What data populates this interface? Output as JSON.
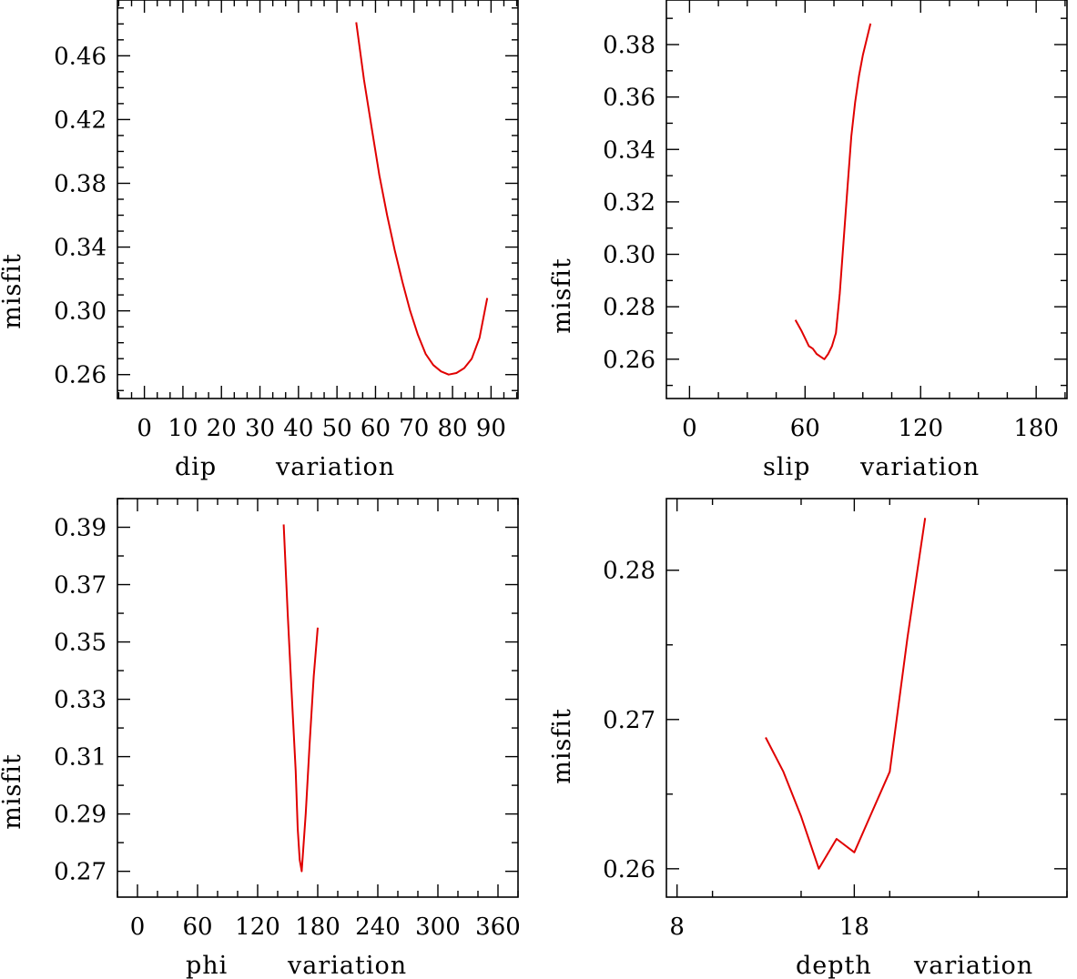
{
  "chart_data": [
    {
      "type": "line",
      "xlabel_words": [
        "dip",
        "variation"
      ],
      "ylabel": "misfit",
      "xlim": [
        -7,
        97
      ],
      "ylim": [
        0.245,
        0.495
      ],
      "xticks": [
        0,
        10,
        20,
        30,
        40,
        50,
        60,
        70,
        80,
        90
      ],
      "yticks": [
        0.26,
        0.3,
        0.34,
        0.38,
        0.42,
        0.46
      ],
      "ytick_labels": [
        "0.26",
        "0.30",
        "0.34",
        "0.38",
        "0.42",
        "0.46"
      ],
      "series": [
        {
          "name": "dip",
          "color": "#e00000",
          "x": [
            55,
            57,
            59,
            61,
            63,
            65,
            67,
            69,
            71,
            73,
            75,
            77,
            79,
            81,
            83,
            85,
            87,
            89
          ],
          "y": [
            0.481,
            0.445,
            0.415,
            0.385,
            0.36,
            0.338,
            0.318,
            0.3,
            0.285,
            0.273,
            0.266,
            0.262,
            0.26,
            0.261,
            0.264,
            0.27,
            0.283,
            0.308
          ]
        }
      ]
    },
    {
      "type": "line",
      "xlabel_words": [
        "slip",
        "variation"
      ],
      "ylabel": "misfit",
      "xlim": [
        -12,
        196
      ],
      "ylim": [
        0.245,
        0.397
      ],
      "xticks": [
        0,
        60,
        120,
        180
      ],
      "yticks": [
        0.26,
        0.28,
        0.3,
        0.32,
        0.34,
        0.36,
        0.38
      ],
      "ytick_labels": [
        "0.26",
        "0.28",
        "0.30",
        "0.32",
        "0.34",
        "0.36",
        "0.38"
      ],
      "series": [
        {
          "name": "slip",
          "color": "#e00000",
          "x": [
            55,
            58,
            60,
            62,
            64,
            66,
            68,
            70,
            72,
            74,
            76,
            78,
            80,
            82,
            84,
            86,
            88,
            90,
            92,
            94
          ],
          "y": [
            0.275,
            0.271,
            0.268,
            0.265,
            0.264,
            0.262,
            0.261,
            0.26,
            0.262,
            0.265,
            0.27,
            0.285,
            0.305,
            0.325,
            0.345,
            0.358,
            0.368,
            0.376,
            0.382,
            0.388
          ]
        }
      ]
    },
    {
      "type": "line",
      "xlabel_words": [
        "phi",
        "variation"
      ],
      "ylabel": "misfit",
      "xlim": [
        -20,
        380
      ],
      "ylim": [
        0.261,
        0.4
      ],
      "xticks": [
        0,
        60,
        120,
        180,
        240,
        300,
        360
      ],
      "yticks": [
        0.27,
        0.29,
        0.31,
        0.33,
        0.35,
        0.37,
        0.39
      ],
      "ytick_labels": [
        "0.27",
        "0.29",
        "0.31",
        "0.33",
        "0.35",
        "0.37",
        "0.39"
      ],
      "series": [
        {
          "name": "phi",
          "color": "#e00000",
          "x": [
            146,
            150,
            154,
            158,
            160,
            162,
            164,
            168,
            172,
            176,
            180
          ],
          "y": [
            0.391,
            0.36,
            0.332,
            0.305,
            0.285,
            0.274,
            0.27,
            0.29,
            0.315,
            0.338,
            0.355
          ]
        }
      ]
    },
    {
      "type": "line",
      "xlabel_words": [
        "depth",
        "variation"
      ],
      "ylabel": "misfit",
      "xlim": [
        7.4,
        30
      ],
      "ylim": [
        0.2581,
        0.2848
      ],
      "xticks": [
        8,
        18
      ],
      "yticks": [
        0.26,
        0.27,
        0.28
      ],
      "ytick_labels": [
        "0.26",
        "0.27",
        "0.28"
      ],
      "series": [
        {
          "name": "depth",
          "color": "#e00000",
          "x": [
            13,
            14,
            15,
            16,
            17,
            18,
            19,
            20,
            21,
            22
          ],
          "y": [
            0.2688,
            0.2665,
            0.2635,
            0.26,
            0.262,
            0.2611,
            0.2638,
            0.2665,
            0.2755,
            0.2835
          ]
        }
      ]
    }
  ]
}
